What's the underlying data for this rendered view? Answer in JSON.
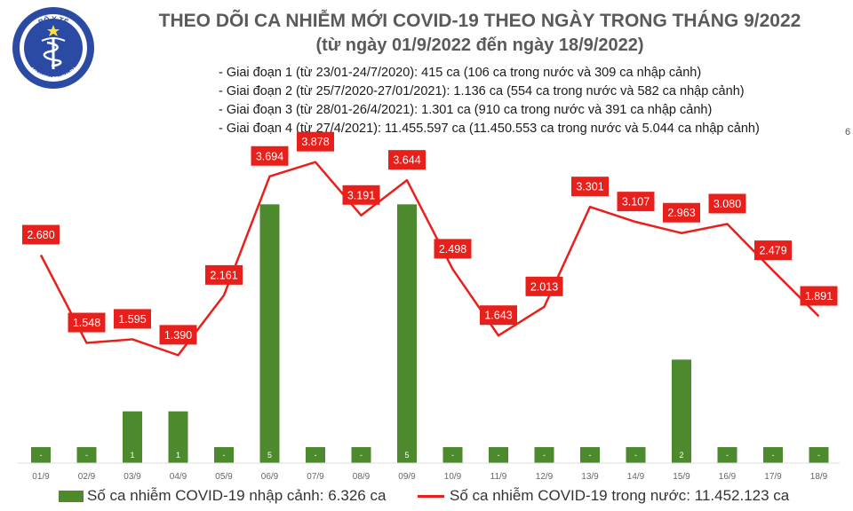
{
  "header": {
    "logo_text": "BỘ Y TẾ",
    "logo_subtext": "MINISTRY OF HEALTH",
    "title_line1": "THEO DÕI CA NHIỄM MỚI COVID-19 THEO NGÀY TRONG THÁNG 9/2022",
    "title_line2": "(từ ngày 01/9/2022 đến ngày 18/9/2022)"
  },
  "periods": [
    "- Giai đoạn 1 (từ 23/01-24/7/2020): 415 ca (106 ca trong nước và 309 ca nhập cảnh)",
    "- Giai đoạn 2 (từ 25/7/2020-27/01/2021): 1.136 ca (554 ca trong nước và 582 ca nhập cảnh)",
    "- Giai đoạn 3 (từ 28/01-26/4/2021): 1.301 ca (910 ca trong nước và 391 ca nhập cảnh)",
    "- Giai đoạn 4 (từ 27/4/2021): 11.455.597 ca (11.450.553 ca trong nước và 5.044 ca nhập cảnh)"
  ],
  "colors": {
    "bar": "#4d8a2e",
    "line": "#e8201c",
    "label_bg": "#e8201c",
    "title": "#5a5a5a"
  },
  "chart_data": {
    "type": "bar+line",
    "categories": [
      "01/9",
      "02/9",
      "03/9",
      "04/9",
      "05/9",
      "06/9",
      "07/9",
      "08/9",
      "09/9",
      "10/9",
      "11/9",
      "12/9",
      "13/9",
      "14/9",
      "15/9",
      "16/9",
      "17/9",
      "18/9"
    ],
    "series": [
      {
        "name": "Số ca nhiễm COVID-19 nhập cảnh: 6.326 ca",
        "type": "bar",
        "axis": "right",
        "values": [
          0,
          0,
          1,
          1,
          0,
          5,
          0,
          0,
          5,
          0,
          0,
          0,
          0,
          0,
          2,
          0,
          0,
          0
        ],
        "labels": [
          "-",
          "-",
          "1",
          "1",
          "-",
          "5",
          "-",
          "-",
          "5",
          "-",
          "-",
          "-",
          "-",
          "-",
          "2",
          "-",
          "-",
          "-"
        ]
      },
      {
        "name": "Số ca nhiễm COVID-19 trong nước: 11.452.123 ca",
        "type": "line",
        "axis": "left",
        "values": [
          2680,
          1548,
          1595,
          1390,
          2161,
          3694,
          3878,
          3191,
          3644,
          2498,
          1643,
          2013,
          3301,
          3107,
          2963,
          3080,
          2479,
          1891
        ],
        "labels": [
          "2.680",
          "1.548",
          "1.595",
          "1.390",
          "2.161",
          "3.694",
          "3.878",
          "3.191",
          "3.644",
          "2.498",
          "1.643",
          "2.013",
          "3.301",
          "3.107",
          "2.963",
          "3.080",
          "2.479",
          "1.891"
        ]
      }
    ],
    "y_left_range": [
      0,
      4000
    ],
    "y_right_range": [
      0,
      6
    ],
    "y_right_top_label": "6",
    "grid": false,
    "legend_position": "bottom"
  }
}
